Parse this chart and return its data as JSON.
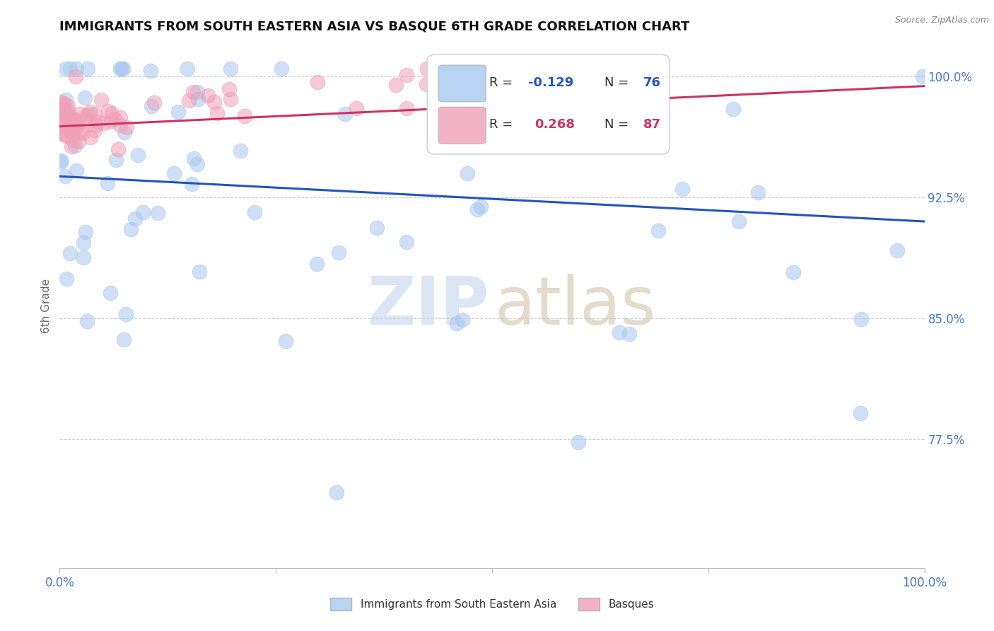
{
  "title": "IMMIGRANTS FROM SOUTH EASTERN ASIA VS BASQUE 6TH GRADE CORRELATION CHART",
  "source": "Source: ZipAtlas.com",
  "ylabel": "6th Grade",
  "ytick_labels": [
    "77.5%",
    "85.0%",
    "92.5%",
    "100.0%"
  ],
  "ytick_values": [
    0.775,
    0.85,
    0.925,
    1.0
  ],
  "xlim": [
    0.0,
    1.0
  ],
  "ylim": [
    0.695,
    1.02
  ],
  "blue_color": "#A8C8F0",
  "pink_color": "#F0A0B8",
  "blue_line_color": "#2255BB",
  "pink_line_color": "#CC3366",
  "axis_label_color": "#4477CC",
  "legend_r1_label": "R = ",
  "legend_r1_val": "-0.129",
  "legend_n1_label": "N = ",
  "legend_n1_val": "76",
  "legend_r2_label": "R =  ",
  "legend_r2_val": "0.268",
  "legend_n2_label": "N = ",
  "legend_n2_val": "87",
  "bottom_legend1": "Immigrants from South Eastern Asia",
  "bottom_legend2": "Basques"
}
